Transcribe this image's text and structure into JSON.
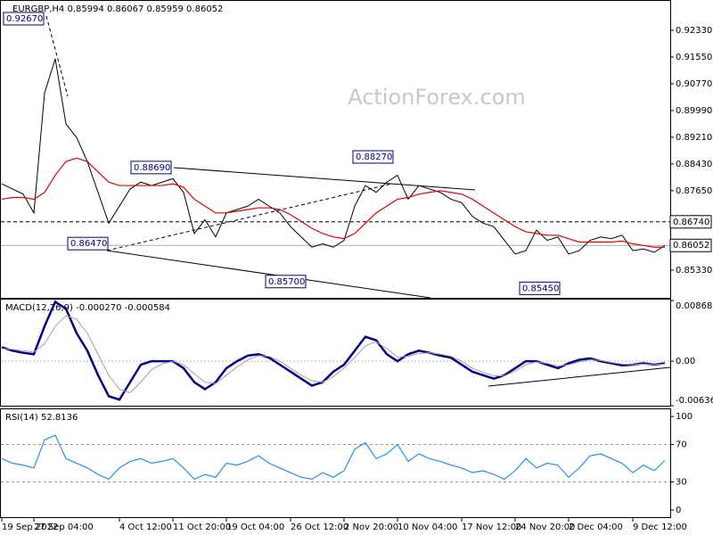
{
  "chart_data": [
    {
      "type": "line",
      "title": "EURGBP,H4 0.85994 0.86067 0.85959 0.86052",
      "watermark": "ActionForex.com",
      "ylim": [
        0.84549,
        0.93163
      ],
      "yticks": [
        {
          "value": 0.9233,
          "label": "0.92330"
        },
        {
          "value": 0.9155,
          "label": "0.91550"
        },
        {
          "value": 0.9077,
          "label": "0.90770"
        },
        {
          "value": 0.8999,
          "label": "0.89990"
        },
        {
          "value": 0.8921,
          "label": "0.89210"
        },
        {
          "value": 0.8843,
          "label": "0.88430"
        },
        {
          "value": 0.8765,
          "label": "0.87650"
        },
        {
          "value": 0.8533,
          "label": "0.85330"
        }
      ],
      "levels": [
        {
          "value": 0.8674,
          "label": "0.86740"
        }
      ],
      "last_price": {
        "value": 0.86052,
        "label": "0.86052"
      },
      "annotations": [
        {
          "value": 0.9267,
          "label": "0.92670"
        },
        {
          "value": 0.8869,
          "label": "0.88690"
        },
        {
          "value": 0.8827,
          "label": "0.88270"
        },
        {
          "value": 0.8647,
          "label": "0.86470"
        },
        {
          "value": 0.857,
          "label": "0.85700"
        },
        {
          "value": 0.8545,
          "label": "0.85450"
        }
      ],
      "series": [
        {
          "name": "EURGBP",
          "color": "#000000",
          "values": [
            0.8785,
            0.877,
            0.8755,
            0.87,
            0.905,
            0.915,
            0.896,
            0.892,
            0.885,
            0.876,
            0.867,
            0.872,
            0.877,
            0.879,
            0.878,
            0.879,
            0.88,
            0.876,
            0.864,
            0.868,
            0.863,
            0.87,
            0.871,
            0.872,
            0.874,
            0.872,
            0.87,
            0.866,
            0.863,
            0.86,
            0.861,
            0.86,
            0.862,
            0.872,
            0.878,
            0.876,
            0.879,
            0.881,
            0.874,
            0.878,
            0.877,
            0.876,
            0.874,
            0.873,
            0.869,
            0.867,
            0.866,
            0.862,
            0.858,
            0.859,
            0.865,
            0.862,
            0.863,
            0.858,
            0.859,
            0.862,
            0.863,
            0.8625,
            0.8635,
            0.859,
            0.8595,
            0.8585,
            0.8605
          ]
        },
        {
          "name": "MA",
          "color": "#e00000",
          "values": [
            0.874,
            0.8745,
            0.8745,
            0.874,
            0.876,
            0.881,
            0.885,
            0.886,
            0.885,
            0.882,
            0.879,
            0.878,
            0.878,
            0.878,
            0.878,
            0.878,
            0.8785,
            0.8775,
            0.874,
            0.872,
            0.87,
            0.87,
            0.8705,
            0.871,
            0.8715,
            0.8715,
            0.871,
            0.8695,
            0.8675,
            0.8655,
            0.864,
            0.863,
            0.8625,
            0.864,
            0.867,
            0.87,
            0.872,
            0.874,
            0.8745,
            0.8755,
            0.876,
            0.8765,
            0.876,
            0.8755,
            0.874,
            0.872,
            0.87,
            0.868,
            0.866,
            0.8645,
            0.864,
            0.8635,
            0.8635,
            0.8625,
            0.8615,
            0.8615,
            0.8615,
            0.8615,
            0.8618,
            0.861,
            0.8605,
            0.86,
            0.86
          ]
        }
      ]
    },
    {
      "type": "line",
      "title": "MACD(12,26,9) -0.000270 -0.000584",
      "ylim": [
        -0.006366,
        0.008686
      ],
      "yticks": [
        0.008686,
        {
          "value": 0,
          "label": "0.00"
        },
        -0.006366
      ],
      "series": [
        {
          "name": "MACD",
          "color": "#00008b",
          "values": [
            0.002,
            0.0015,
            0.0012,
            0.001,
            0.005,
            0.0085,
            0.0075,
            0.004,
            0.0015,
            -0.002,
            -0.005,
            -0.0055,
            -0.003,
            -0.0005,
            0,
            0,
            0,
            -0.001,
            -0.003,
            -0.004,
            -0.003,
            -0.001,
            0,
            0.0008,
            0.001,
            0.0005,
            -0.0005,
            -0.0015,
            -0.0025,
            -0.0035,
            -0.003,
            -0.0015,
            -0.0005,
            0.0015,
            0.0035,
            0.003,
            0.001,
            0,
            0.001,
            0.0015,
            0.0012,
            0.0008,
            0.0005,
            -0.0005,
            -0.0015,
            -0.002,
            -0.0025,
            -0.002,
            -0.001,
            0,
            0,
            -0.0005,
            -0.001,
            -0.0003,
            0.0002,
            0.0004,
            0,
            -0.0003,
            -0.0006,
            -0.0005,
            -0.0003,
            -0.0005,
            -0.0003
          ]
        },
        {
          "name": "Signal",
          "color": "#a0a0a0",
          "values": [
            0.0018,
            0.0017,
            0.0015,
            0.0013,
            0.0025,
            0.005,
            0.0065,
            0.006,
            0.004,
            0.001,
            -0.002,
            -0.004,
            -0.0045,
            -0.003,
            -0.0012,
            -0.0004,
            0,
            -0.0005,
            -0.0018,
            -0.003,
            -0.0032,
            -0.002,
            -0.0008,
            0.0002,
            0.0008,
            0.0007,
            0,
            -0.001,
            -0.002,
            -0.0028,
            -0.003,
            -0.0022,
            -0.001,
            0.0005,
            0.0022,
            0.0028,
            0.0018,
            0.0006,
            0.0007,
            0.0011,
            0.0012,
            0.001,
            0.0007,
            0,
            -0.001,
            -0.0016,
            -0.0021,
            -0.0021,
            -0.0014,
            -0.0005,
            -0.0001,
            -0.0003,
            -0.0007,
            -0.0005,
            -0.0001,
            0.0002,
            0.0001,
            -0.0002,
            -0.0004,
            -0.0005,
            -0.0004,
            -0.0005,
            -0.0004
          ]
        }
      ]
    },
    {
      "type": "line",
      "title": "RSI(14) 52.8136",
      "ylim": [
        -7.6,
        106.7
      ],
      "yticks": [
        100,
        70,
        30,
        0
      ],
      "categories": [
        "19 Sep 2022",
        null,
        null,
        "27 Sep 04:00",
        null,
        null,
        null,
        null,
        null,
        null,
        null,
        "4 Oct 12:00",
        null,
        null,
        null,
        null,
        "11 Oct 20:00",
        null,
        null,
        null,
        null,
        "19 Oct 04:00",
        null,
        null,
        null,
        null,
        null,
        "26 Oct 12:00",
        null,
        null,
        null,
        null,
        "2 Nov 20:00",
        null,
        null,
        null,
        null,
        "10 Nov 04:00",
        null,
        null,
        null,
        null,
        null,
        "17 Nov 12:00",
        null,
        null,
        null,
        null,
        "24 Nov 20:00",
        null,
        null,
        null,
        null,
        "2 Dec 04:00",
        null,
        null,
        null,
        null,
        null,
        "9 Dec 12:00",
        null,
        null,
        null
      ],
      "series": [
        {
          "name": "RSI",
          "color": "#1e90ff",
          "values": [
            55,
            50,
            48,
            45,
            75,
            80,
            55,
            50,
            45,
            38,
            33,
            45,
            52,
            55,
            50,
            52,
            55,
            45,
            33,
            38,
            35,
            50,
            48,
            52,
            58,
            50,
            45,
            40,
            35,
            33,
            40,
            35,
            42,
            65,
            72,
            55,
            60,
            70,
            52,
            60,
            55,
            52,
            48,
            45,
            40,
            42,
            38,
            33,
            42,
            55,
            45,
            50,
            48,
            35,
            45,
            58,
            60,
            55,
            50,
            40,
            48,
            42,
            53
          ]
        }
      ]
    }
  ]
}
